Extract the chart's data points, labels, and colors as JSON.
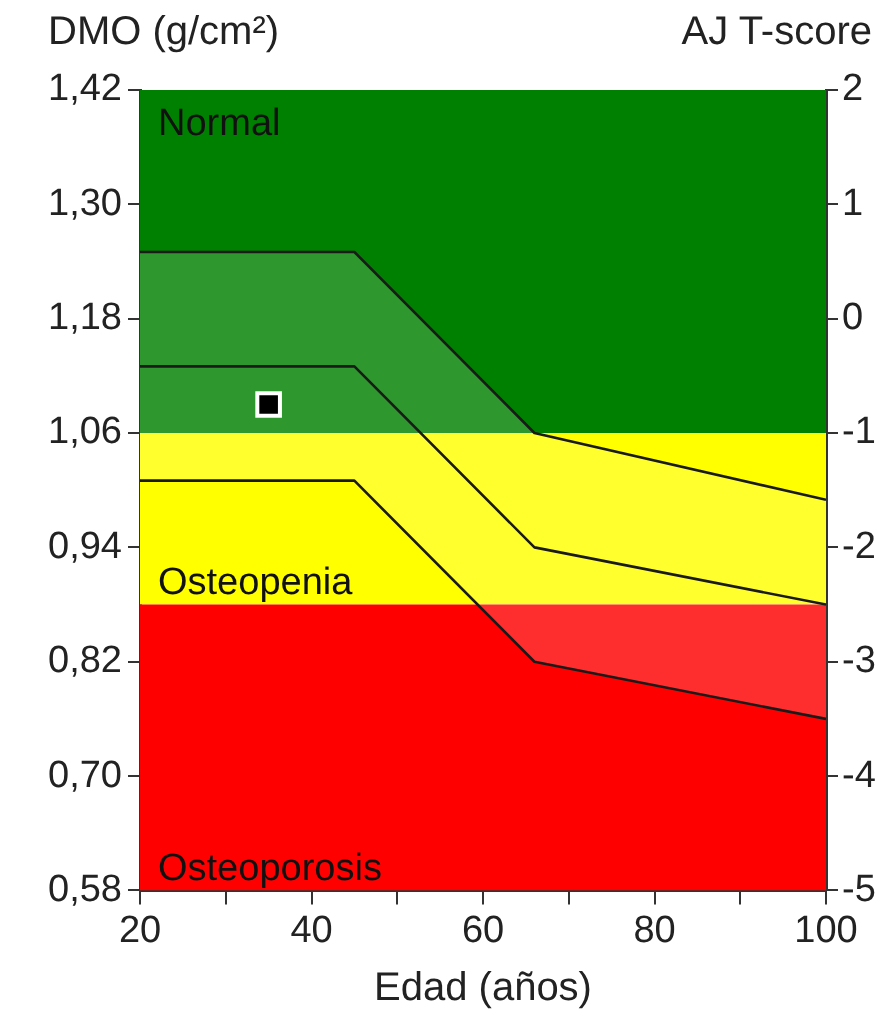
{
  "chart_data": {
    "type": "line",
    "xlabel": "Edad (años)",
    "ylabel": "DMO (g/cm²)",
    "y2label": "AJ T-score",
    "xlim": [
      20,
      100
    ],
    "xticks": [
      20,
      {
        "value": 30,
        "label": null
      },
      40,
      {
        "value": 50,
        "label": null
      },
      60,
      {
        "value": 70,
        "label": null
      },
      80,
      {
        "value": 90,
        "label": null
      },
      100
    ],
    "ylim": [
      0.58,
      1.42
    ],
    "yticks": [
      {
        "value": 0.58,
        "label": "0,58"
      },
      {
        "value": 0.7,
        "label": "0,70"
      },
      {
        "value": 0.82,
        "label": "0,82"
      },
      {
        "value": 0.94,
        "label": "0,94"
      },
      {
        "value": 1.06,
        "label": "1,06"
      },
      {
        "value": 1.18,
        "label": "1,18"
      },
      {
        "value": 1.3,
        "label": "1,30"
      },
      {
        "value": 1.42,
        "label": "1,42"
      }
    ],
    "y2lim": [
      -5,
      2
    ],
    "y2ticks": [
      -5,
      -4,
      -3,
      -2,
      -1,
      0,
      1,
      2
    ],
    "bands": [
      {
        "axis": "y",
        "from": 1.06,
        "to": 1.42,
        "label": "Normal",
        "color": "#008000"
      },
      {
        "axis": "y",
        "from": 0.88,
        "to": 1.06,
        "label": "Osteopenia",
        "color": "#ffff00"
      },
      {
        "axis": "y",
        "from": 0.58,
        "to": 0.88,
        "label": "Osteoporosis",
        "color": "#ff0000"
      }
    ],
    "series": [
      {
        "color": "#1a1a1a",
        "x": [
          20,
          45,
          66,
          100
        ],
        "values": [
          1.25,
          1.25,
          1.06,
          0.99
        ]
      },
      {
        "color": "#1a1a1a",
        "x": [
          20,
          45,
          66,
          100
        ],
        "values": [
          1.13,
          1.13,
          0.94,
          0.88
        ],
        "lower": [
          1.01,
          1.01,
          0.82,
          0.76
        ],
        "upper": [
          1.25,
          1.25,
          1.06,
          0.99
        ]
      },
      {
        "color": "#1a1a1a",
        "x": [
          20,
          45,
          66,
          100
        ],
        "values": [
          1.01,
          1.01,
          0.82,
          0.76
        ]
      },
      {
        "type": "scatter",
        "color": "#000000",
        "x": [
          35
        ],
        "values": [
          1.09
        ],
        "marker": "square"
      }
    ],
    "marker": "none",
    "line_style": "solid",
    "grid": false,
    "legend": false
  }
}
